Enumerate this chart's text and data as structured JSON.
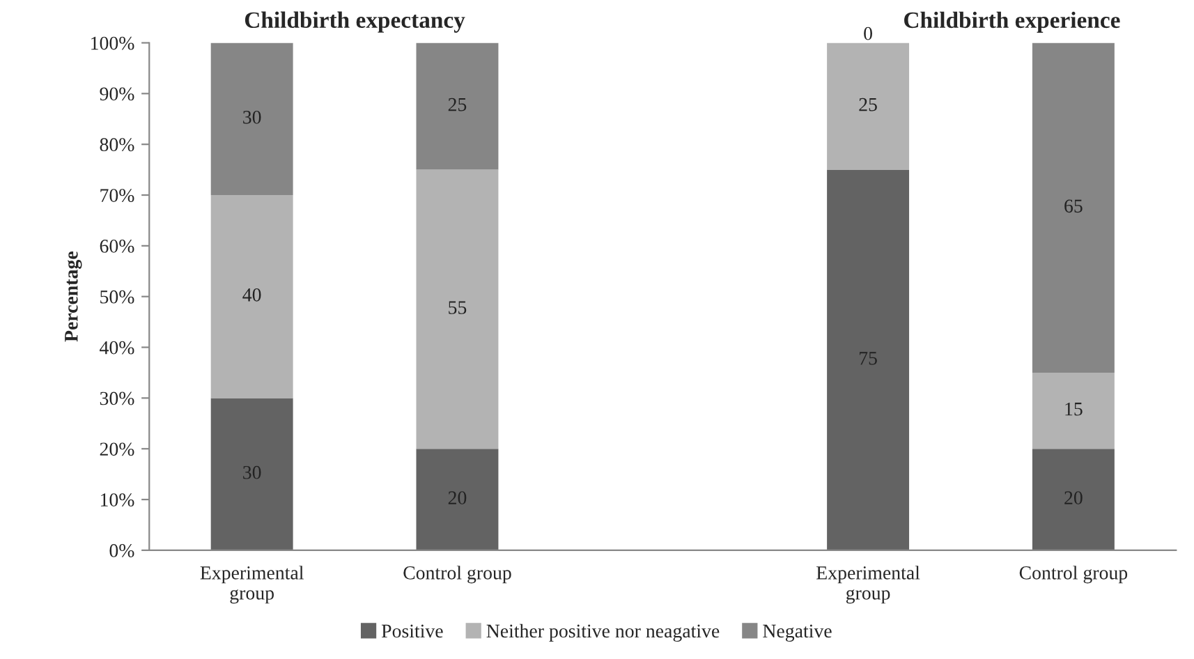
{
  "chart_data": {
    "type": "bar",
    "stacked": true,
    "ylabel": "Percentage",
    "annotations": [
      "Childbirth expectancy",
      "Childbirth experience"
    ],
    "categories": [
      "Experimental group",
      "Control group",
      null,
      "Experimental group",
      "Control group"
    ],
    "series": [
      {
        "name": "Positive",
        "color": "#636363",
        "values": [
          30,
          20,
          null,
          75,
          20
        ]
      },
      {
        "name": "Neither positive nor neagative",
        "color": "#b3b3b3",
        "values": [
          40,
          55,
          null,
          25,
          15
        ]
      },
      {
        "name": "Negative",
        "color": "#868686",
        "values": [
          30,
          25,
          null,
          0,
          65
        ]
      }
    ],
    "ylim": [
      0,
      100
    ],
    "yticks": [
      {
        "value": 0,
        "label": "0%"
      },
      {
        "value": 10,
        "label": "10%"
      },
      {
        "value": 20,
        "label": "20%"
      },
      {
        "value": 30,
        "label": "30%"
      },
      {
        "value": 40,
        "label": "40%"
      },
      {
        "value": 50,
        "label": "50%"
      },
      {
        "value": 60,
        "label": "60%"
      },
      {
        "value": 70,
        "label": "70%"
      },
      {
        "value": 80,
        "label": "80%"
      },
      {
        "value": 90,
        "label": "90%"
      },
      {
        "value": 100,
        "label": "100%"
      }
    ],
    "data_labels": true,
    "grid": false,
    "legend": "bottom"
  }
}
